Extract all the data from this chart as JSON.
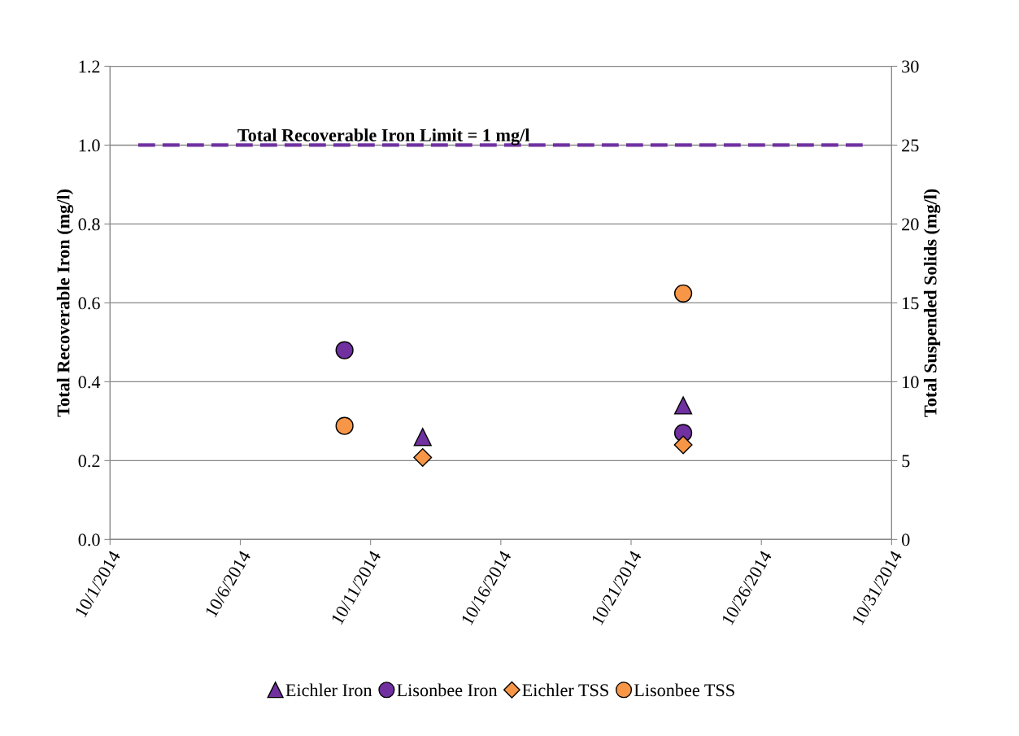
{
  "chart_data": {
    "type": "scatter",
    "ylabel": "Total Recoverable Iron (mg/l)",
    "y2label": "Total Suspended Solids (mg/l)",
    "xlim": [
      "2014-10-01",
      "2014-10-31"
    ],
    "xticks": [
      {
        "value": "2014-10-01",
        "label": "10/1/2014"
      },
      {
        "value": "2014-10-06",
        "label": "10/6/2014"
      },
      {
        "value": "2014-10-11",
        "label": "10/11/2014"
      },
      {
        "value": "2014-10-16",
        "label": "10/16/2014"
      },
      {
        "value": "2014-10-21",
        "label": "10/21/2014"
      },
      {
        "value": "2014-10-26",
        "label": "10/26/2014"
      },
      {
        "value": "2014-10-31",
        "label": "10/31/2014"
      }
    ],
    "ylim": [
      0,
      1.2
    ],
    "yticks": [
      {
        "value": 0,
        "label": "0.0"
      },
      {
        "value": 0.2,
        "label": "0.2"
      },
      {
        "value": 0.4,
        "label": "0.4"
      },
      {
        "value": 0.6,
        "label": "0.6"
      },
      {
        "value": 0.8,
        "label": "0.8"
      },
      {
        "value": 1.0,
        "label": "1.0"
      },
      {
        "value": 1.2,
        "label": "1.2"
      }
    ],
    "y2lim": [
      0,
      30
    ],
    "y2ticks": [
      0,
      5,
      10,
      15,
      20,
      25,
      30
    ],
    "grid": "y",
    "legend": "bottom",
    "series": [
      {
        "name": "Eichler Iron",
        "color": "#7030a0",
        "marker": "triangle",
        "x": [
          "2014-10-13",
          "2014-10-23"
        ],
        "values": [
          0.26,
          0.34
        ]
      },
      {
        "name": "Lisonbee Iron",
        "color": "#7030a0",
        "marker": "circle",
        "x": [
          "2014-10-10",
          "2014-10-23"
        ],
        "values": [
          0.48,
          0.27
        ]
      },
      {
        "name": "Eichler TSS",
        "color": "#f79646",
        "marker": "diamond",
        "axis": "y2",
        "x": [
          "2014-10-13",
          "2014-10-23"
        ],
        "values": [
          5.2,
          6.0
        ]
      },
      {
        "name": "Lisonbee TSS",
        "color": "#f79646",
        "marker": "circle",
        "axis": "y2",
        "x": [
          "2014-10-10",
          "2014-10-23"
        ],
        "values": [
          7.2,
          15.6
        ]
      }
    ],
    "ref_lines": [
      {
        "axis": "y",
        "value": 1.0,
        "label": "Total Recoverable Iron Limit = 1 mg/l",
        "color": "#7030a0",
        "line_style": "dashed"
      }
    ]
  }
}
